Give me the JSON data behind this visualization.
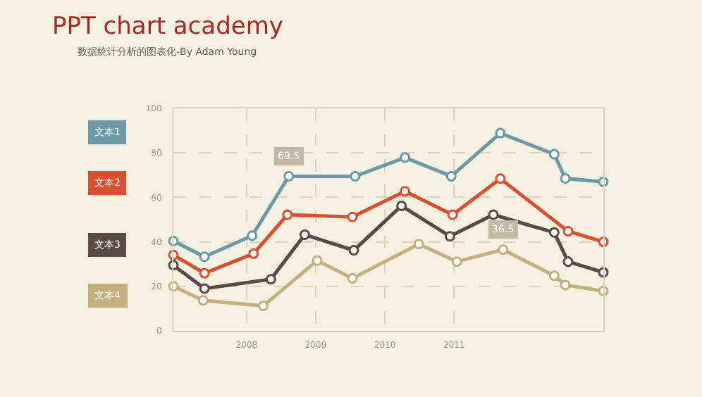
{
  "chart_data": {
    "type": "line",
    "title": "PPT chart academy",
    "subtitle": "数据统计分析的图表化-By Adam Young",
    "xlim": [
      2006.94,
      2013.16
    ],
    "xticks": [
      2008,
      2009,
      2010,
      2011
    ],
    "ylim": [
      0,
      100
    ],
    "yticks": [
      0,
      20,
      40,
      60,
      80,
      100
    ],
    "grid": true,
    "legend": "left",
    "marker": "circle",
    "line_style": "solid",
    "annotations": [
      {
        "text": "69.5",
        "x": 2008.61,
        "y": 69.5
      },
      {
        "text": "36.5",
        "x": 2011.71,
        "y": 36.5
      }
    ],
    "series": [
      {
        "name": "文本1",
        "color": "#6a9aa8",
        "x": [
          2006.94,
          2007.39,
          2008.08,
          2008.61,
          2009.57,
          2010.29,
          2010.96,
          2011.67,
          2012.45,
          2012.61,
          2013.16
        ],
        "values": [
          40.4,
          33.3,
          42.8,
          69.5,
          69.5,
          77.9,
          69.5,
          88.9,
          79.4,
          68.5,
          67.0
        ]
      },
      {
        "name": "文本2",
        "color": "#d9502f",
        "x": [
          2006.94,
          2007.39,
          2008.1,
          2008.59,
          2009.53,
          2010.29,
          2010.98,
          2011.67,
          2012.65,
          2013.16
        ],
        "values": [
          34.1,
          25.9,
          34.7,
          52.2,
          51.2,
          62.7,
          52.2,
          68.4,
          44.8,
          40.0
        ]
      },
      {
        "name": "文本3",
        "color": "#5a4a44",
        "x": [
          2006.94,
          2007.39,
          2008.35,
          2008.84,
          2009.55,
          2010.24,
          2010.94,
          2011.57,
          2012.45,
          2012.65,
          2013.16
        ],
        "values": [
          29.5,
          19.0,
          23.2,
          43.2,
          36.2,
          56.2,
          42.5,
          52.2,
          44.2,
          31.1,
          26.3
        ]
      },
      {
        "name": "文本4",
        "color": "#c4b07e",
        "x": [
          2006.94,
          2007.37,
          2008.24,
          2009.02,
          2009.53,
          2010.49,
          2011.04,
          2011.71,
          2012.45,
          2012.61,
          2013.16
        ],
        "values": [
          20.0,
          13.7,
          11.2,
          31.6,
          23.6,
          39.0,
          31.1,
          36.5,
          24.8,
          20.6,
          17.9
        ]
      }
    ]
  }
}
